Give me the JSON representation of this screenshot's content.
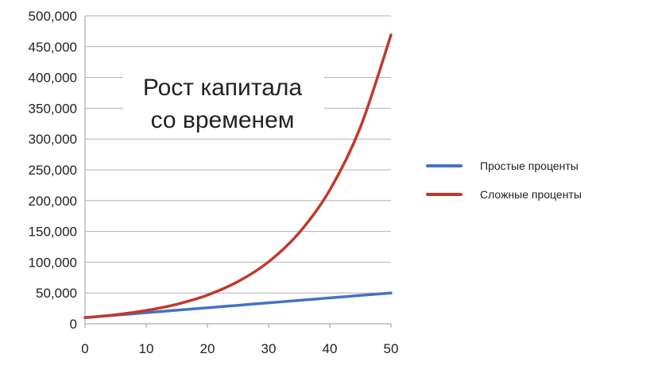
{
  "chart_data": {
    "type": "line",
    "title": [
      "Рост капитала",
      "со временем"
    ],
    "xlabel": "",
    "ylabel": "",
    "xlim": [
      0,
      50
    ],
    "ylim": [
      0,
      500000
    ],
    "grid": "horizontal",
    "legend_position": "right",
    "x_ticks": [
      "0",
      "10",
      "20",
      "30",
      "40",
      "50"
    ],
    "y_ticks": [
      "0",
      "50,000",
      "100,000",
      "150,000",
      "200,000",
      "250,000",
      "300,000",
      "350,000",
      "400,000",
      "450,000",
      "500,000"
    ],
    "x": [
      0,
      5,
      10,
      15,
      20,
      25,
      30,
      35,
      40,
      45,
      50
    ],
    "series": [
      {
        "name": "Простые проценты",
        "color": "#4472c4",
        "values": [
          10000,
          14000,
          18000,
          22000,
          26000,
          30000,
          34000,
          38000,
          42000,
          46000,
          50000
        ]
      },
      {
        "name": "Сложные проценты",
        "color": "#c0392b",
        "values": [
          10000,
          14700,
          21600,
          31700,
          46600,
          68500,
          100600,
          147900,
          217200,
          319200,
          469000
        ]
      }
    ]
  }
}
